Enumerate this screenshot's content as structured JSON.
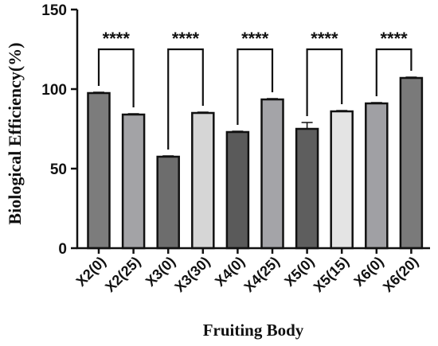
{
  "chart_data": {
    "type": "bar",
    "title": "",
    "xlabel": "Fruiting Body",
    "ylabel": "Biological Efficiency(%)",
    "ylim": [
      0,
      150
    ],
    "yticks": [
      0,
      50,
      100,
      150
    ],
    "categories": [
      "X2(0)",
      "X2(25)",
      "X3(0)",
      "X3(30)",
      "X4(0)",
      "X4(25)",
      "X5(0)",
      "X5(15)",
      "X6(0)",
      "X6(20)"
    ],
    "values": [
      97.5,
      84,
      57.5,
      85,
      73,
      93.5,
      75,
      86,
      91,
      107
    ],
    "errors": [
      0.5,
      0.5,
      0.5,
      0.5,
      0.5,
      0.5,
      4,
      0.5,
      0.5,
      0.5
    ],
    "colors": [
      "#7c7c7c",
      "#a3a3a6",
      "#6d6d6d",
      "#d6d6d6",
      "#5a5a5a",
      "#a4a4a8",
      "#5e5e5e",
      "#e4e4e4",
      "#a0a0a4",
      "#7a7a7a"
    ],
    "grid": false,
    "annotations": [
      {
        "pair": [
          0,
          1
        ],
        "label": "****"
      },
      {
        "pair": [
          2,
          3
        ],
        "label": "****"
      },
      {
        "pair": [
          4,
          5
        ],
        "label": "****"
      },
      {
        "pair": [
          6,
          7
        ],
        "label": "****"
      },
      {
        "pair": [
          8,
          9
        ],
        "label": "****"
      }
    ]
  }
}
